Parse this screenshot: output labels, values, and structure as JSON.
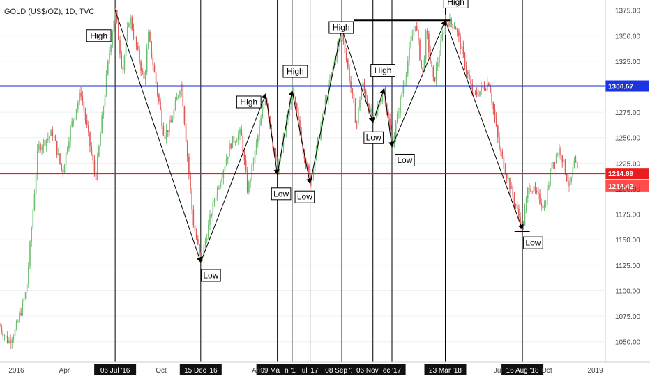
{
  "header": {
    "title": "GOLD (US$/OZ), 1D, TVC"
  },
  "colors": {
    "up": "#6fbf73",
    "down": "#e05a5a",
    "blue_line": "#1a33e6",
    "red_line": "#e81e1e",
    "red_badge": "#ff4d4d",
    "date_badge": "#111111"
  },
  "chart_data": {
    "type": "candlestick",
    "title": "GOLD (US$/OZ), 1D, TVC",
    "ylim": [
      1030,
      1385
    ],
    "y_ticks": [
      1050,
      1075,
      1100,
      1125,
      1150,
      1175,
      1200,
      1225,
      1250,
      1275,
      1300,
      1325,
      1350,
      1375
    ],
    "x_tick_labels": [
      "2016",
      "Apr",
      "Jul",
      "Oct",
      "2017",
      "Apr",
      "Jul",
      "Oct",
      "2018",
      "Apr",
      "Jul",
      "Oct",
      "2019"
    ],
    "visible_x_ticks": [
      "2016",
      "Apr",
      "Oct",
      "Apr",
      "Jul",
      "Oct",
      "2019"
    ],
    "x_range": [
      "2015-12-01",
      "2019-01-20"
    ],
    "horizontal_lines": [
      {
        "price": 1300.67,
        "label": "1300.67",
        "color": "blue"
      },
      {
        "price": 1214.89,
        "label": "1214.89",
        "color": "red"
      }
    ],
    "last_price": {
      "price": 1214.42,
      "label": "1214.42"
    },
    "swing_points": [
      {
        "date": "2016-07-06",
        "price": 1375,
        "type": "High",
        "label": "06 Jul '16"
      },
      {
        "date": "2016-12-15",
        "price": 1128,
        "type": "Low",
        "label": "15 Dec '16"
      },
      {
        "date": "2017-04-17",
        "price": 1293,
        "type": "High"
      },
      {
        "date": "2017-05-09",
        "price": 1214,
        "type": "Low",
        "label": "09 May '17"
      },
      {
        "date": "2017-06-06",
        "price": 1296,
        "type": "High",
        "label": "n '17"
      },
      {
        "date": "2017-07-10",
        "price": 1205,
        "type": "Low",
        "label": "ul '17"
      },
      {
        "date": "2017-09-08",
        "price": 1357,
        "type": "High",
        "label": "08 Sep '17"
      },
      {
        "date": "2017-11-06",
        "price": 1265,
        "type": "Low",
        "label": "06 Nov '17"
      },
      {
        "date": "2017-11-27",
        "price": 1298,
        "type": "High"
      },
      {
        "date": "2017-12-12",
        "price": 1241,
        "type": "Low",
        "label": "ec '17"
      },
      {
        "date": "2018-03-23",
        "price": 1365,
        "type": "High",
        "label": "23 Mar '18"
      },
      {
        "date": "2018-08-16",
        "price": 1160,
        "type": "Low",
        "label": "16 Aug '18"
      }
    ],
    "annotations": [
      "High",
      "Low",
      "High",
      "Low",
      "High",
      "Low",
      "High",
      "Low",
      "High",
      "Low",
      "High",
      "Low"
    ],
    "price_series": [
      [
        "2015-12-01",
        1065
      ],
      [
        "2015-12-17",
        1050
      ],
      [
        "2015-12-31",
        1062
      ],
      [
        "2016-01-20",
        1100
      ],
      [
        "2016-02-11",
        1240
      ],
      [
        "2016-03-10",
        1255
      ],
      [
        "2016-03-28",
        1215
      ],
      [
        "2016-04-12",
        1258
      ],
      [
        "2016-05-02",
        1295
      ],
      [
        "2016-05-30",
        1210
      ],
      [
        "2016-06-24",
        1330
      ],
      [
        "2016-07-06",
        1375
      ],
      [
        "2016-07-20",
        1315
      ],
      [
        "2016-08-02",
        1370
      ],
      [
        "2016-08-30",
        1305
      ],
      [
        "2016-09-07",
        1350
      ],
      [
        "2016-10-07",
        1252
      ],
      [
        "2016-10-20",
        1265
      ],
      [
        "2016-11-08",
        1305
      ],
      [
        "2016-11-30",
        1170
      ],
      [
        "2016-12-15",
        1128
      ],
      [
        "2017-01-10",
        1190
      ],
      [
        "2017-02-10",
        1245
      ],
      [
        "2017-03-01",
        1255
      ],
      [
        "2017-03-14",
        1197
      ],
      [
        "2017-04-17",
        1293
      ],
      [
        "2017-05-09",
        1214
      ],
      [
        "2017-06-06",
        1296
      ],
      [
        "2017-07-10",
        1205
      ],
      [
        "2017-08-10",
        1290
      ],
      [
        "2017-09-08",
        1357
      ],
      [
        "2017-10-06",
        1262
      ],
      [
        "2017-10-16",
        1305
      ],
      [
        "2017-11-06",
        1265
      ],
      [
        "2017-11-27",
        1298
      ],
      [
        "2017-12-12",
        1241
      ],
      [
        "2018-01-25",
        1365
      ],
      [
        "2018-02-08",
        1310
      ],
      [
        "2018-02-15",
        1355
      ],
      [
        "2018-03-01",
        1303
      ],
      [
        "2018-03-23",
        1365
      ],
      [
        "2018-04-11",
        1360
      ],
      [
        "2018-05-15",
        1290
      ],
      [
        "2018-06-14",
        1305
      ],
      [
        "2018-07-03",
        1240
      ],
      [
        "2018-08-16",
        1160
      ],
      [
        "2018-08-28",
        1205
      ],
      [
        "2018-09-27",
        1182
      ],
      [
        "2018-10-11",
        1225
      ],
      [
        "2018-10-26",
        1240
      ],
      [
        "2018-11-13",
        1200
      ],
      [
        "2018-11-22",
        1225
      ],
      [
        "2018-11-30",
        1214
      ]
    ],
    "trend_path_dates": [
      "2016-07-06",
      "2016-12-15",
      "2017-04-17",
      "2017-05-09",
      "2017-06-06",
      "2017-07-10",
      "2017-09-08",
      "2017-11-06",
      "2017-11-27",
      "2017-12-12",
      "2018-03-23",
      "2018-08-16"
    ],
    "top_bar_dates": [
      "2017-10-01",
      "2018-04-01"
    ],
    "bottom_bar_dates": [
      "2018-08-01",
      "2018-08-30"
    ],
    "high_low_boxes": [
      {
        "text": "High",
        "date": "2016-06-28",
        "price": 1350,
        "align": "left"
      },
      {
        "text": "Low",
        "date": "2016-12-16",
        "price": 1115,
        "align": "right"
      },
      {
        "text": "High",
        "date": "2017-04-08",
        "price": 1285,
        "align": "left"
      },
      {
        "text": "Low",
        "date": "2017-04-28",
        "price": 1195,
        "align": "right"
      },
      {
        "text": "High",
        "date": "2017-05-20",
        "price": 1315,
        "align": "right"
      },
      {
        "text": "Low",
        "date": "2017-07-18",
        "price": 1192,
        "align": "left"
      },
      {
        "text": "High",
        "date": "2017-08-15",
        "price": 1358,
        "align": "right"
      },
      {
        "text": "Low",
        "date": "2017-10-20",
        "price": 1250,
        "align": "right"
      },
      {
        "text": "High",
        "date": "2017-11-02",
        "price": 1316,
        "align": "right"
      },
      {
        "text": "Low",
        "date": "2017-12-18",
        "price": 1228,
        "align": "right"
      },
      {
        "text": "High",
        "date": "2018-03-20",
        "price": 1383,
        "align": "right"
      },
      {
        "text": "Low",
        "date": "2018-08-18",
        "price": 1147,
        "align": "right"
      }
    ],
    "vertical_line_dates": [
      "2016-07-06",
      "2016-12-15",
      "2017-05-09",
      "2017-06-06",
      "2017-07-10",
      "2017-09-08",
      "2017-11-06",
      "2017-12-12",
      "2018-03-23",
      "2018-08-16"
    ]
  }
}
